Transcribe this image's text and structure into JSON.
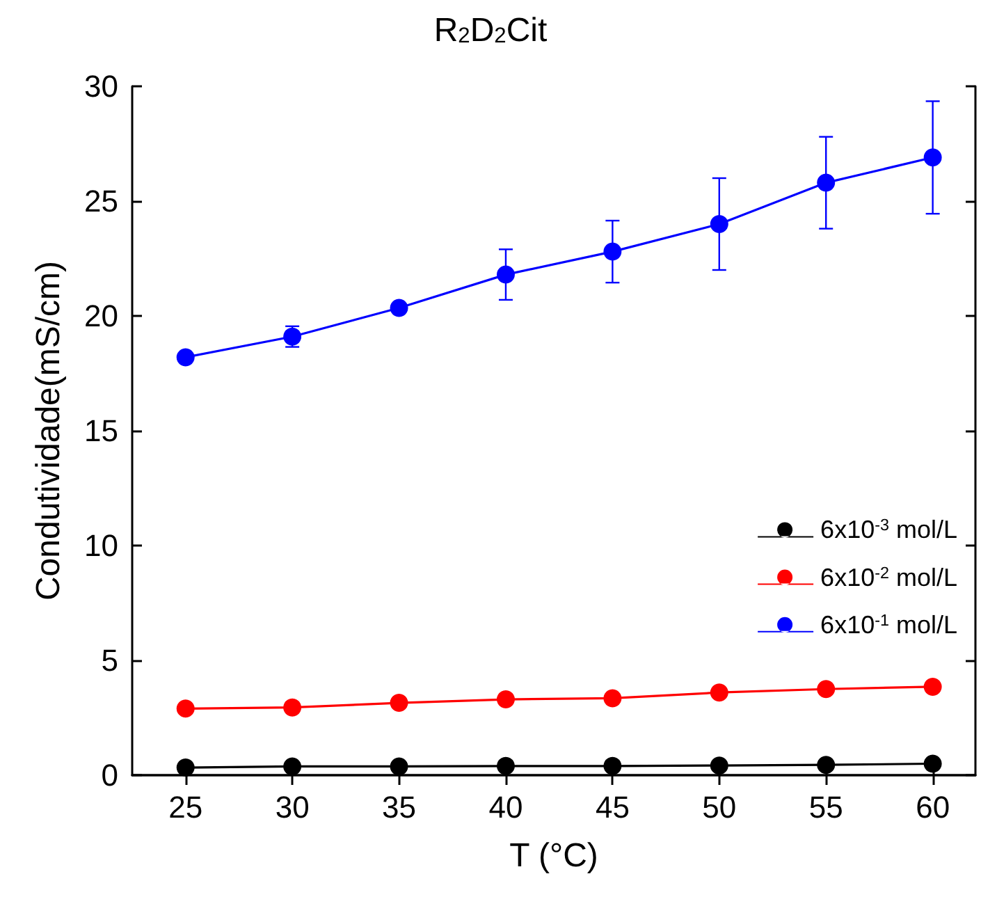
{
  "chart_data": {
    "type": "line",
    "title": "R$_{2}$D$_{2}$Cit",
    "xlabel": "T (°C)",
    "ylabel": "Condutividade(mS/cm)",
    "x": [
      25,
      30,
      35,
      40,
      45,
      50,
      55,
      60
    ],
    "series": [
      {
        "name": "6x10$^{-3}$ mol/L",
        "color": "#000000",
        "values": [
          0.33,
          0.38,
          0.38,
          0.4,
          0.4,
          0.42,
          0.45,
          0.5
        ]
      },
      {
        "name": "6x10$^{-2}$ mol/L",
        "color": "#ff0000",
        "values": [
          2.9,
          2.95,
          3.15,
          3.3,
          3.35,
          3.6,
          3.75,
          3.85
        ]
      },
      {
        "name": "6x10$^{-1}$ mol/L",
        "color": "#0000ff",
        "values": [
          18.2,
          19.1,
          20.35,
          21.8,
          22.8,
          24.0,
          25.8,
          26.9
        ],
        "errors": [
          null,
          0.45,
          null,
          1.1,
          1.35,
          2.0,
          2.0,
          2.45
        ]
      }
    ],
    "xlim": [
      22.5,
      62
    ],
    "xticks": [
      25,
      30,
      35,
      40,
      45,
      50,
      55,
      60
    ],
    "ylim": [
      0,
      30
    ],
    "yticks": [
      0,
      5,
      10,
      15,
      20,
      25,
      30
    ],
    "grid": false,
    "legend": "bottom right",
    "marker": "circle",
    "line_style": "solid"
  }
}
